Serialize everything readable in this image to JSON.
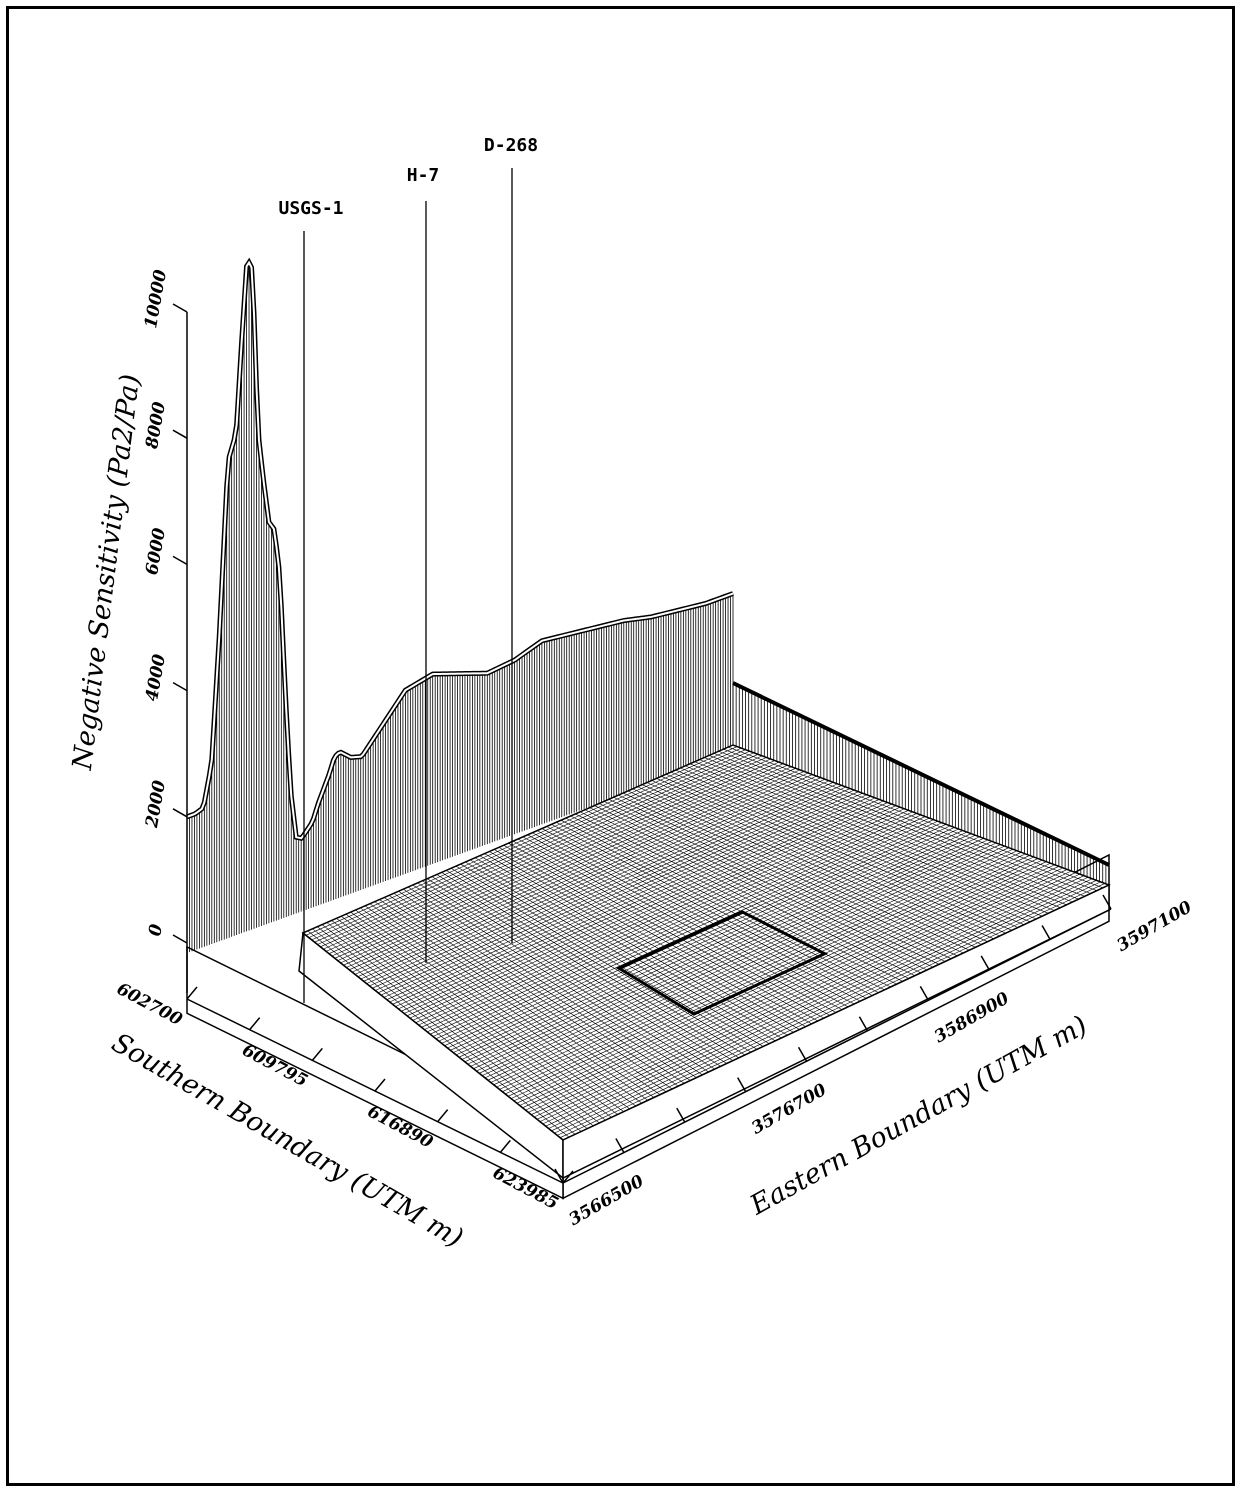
{
  "chart_data": {
    "type": "surface3d",
    "zlabel": "Negative Sensitivity (Pa2/Pa)",
    "xlabel": "Southern Boundary (UTM m)",
    "ylabel": "Eastern Boundary (UTM m)",
    "zticks": [
      "0",
      "2000",
      "4000",
      "6000",
      "8000",
      "10000"
    ],
    "zlim": [
      0,
      10000
    ],
    "xticks": [
      "602700",
      "609795",
      "616890",
      "623985"
    ],
    "xlim": [
      602700,
      623985
    ],
    "yticks": [
      "3566500",
      "3576700",
      "3586900",
      "3597100"
    ],
    "ylim": [
      3566500,
      3597100
    ],
    "wells": [
      {
        "name": "USGS-1"
      },
      {
        "name": "H-7"
      },
      {
        "name": "D-268"
      }
    ],
    "southern_boundary_profile": {
      "x_rel": [
        0,
        0.015,
        0.03,
        0.045,
        0.06,
        0.075,
        0.09,
        0.1,
        0.11,
        0.12,
        0.13,
        0.14,
        0.15,
        0.16,
        0.17,
        0.18,
        0.19,
        0.2,
        0.21,
        0.22,
        0.23,
        0.24,
        0.25,
        0.26,
        0.27,
        0.28,
        0.3,
        0.32,
        0.34,
        0.37,
        0.4,
        0.45,
        0.5,
        0.55,
        0.6,
        0.65,
        0.7,
        0.75,
        0.8,
        0.85,
        0.9,
        0.95,
        1.0
      ],
      "z": [
        2000,
        2000,
        2050,
        2700,
        4800,
        7400,
        7800,
        9200,
        10500,
        10300,
        7700,
        6900,
        6200,
        6050,
        5300,
        3400,
        1800,
        1050,
        1000,
        1100,
        1200,
        1450,
        1650,
        1850,
        2100,
        2150,
        2000,
        1950,
        2150,
        2450,
        2750,
        2850,
        2700,
        2550,
        2600,
        2750,
        2700,
        2650,
        2600,
        2500,
        2450,
        2400,
        2400
      ]
    },
    "eastern_boundary_profile": {
      "y_rel": [
        0,
        0.05,
        0.1,
        0.15,
        0.2,
        0.25,
        0.3,
        0.35,
        0.4,
        0.45,
        0.5,
        0.55,
        0.6,
        0.65,
        0.7,
        0.75,
        0.8,
        0.85,
        0.9,
        0.95,
        1.0
      ],
      "z": [
        2000,
        1500,
        800,
        200,
        0,
        0,
        0,
        0,
        0,
        0,
        0,
        0,
        0,
        0,
        0,
        0,
        0,
        0,
        0,
        0,
        0
      ]
    },
    "base_level": 0,
    "floor_offset": -1050,
    "inner_box": {
      "x_rel": [
        0.55,
        0.8
      ],
      "y_rel": [
        0.35,
        0.6
      ]
    }
  }
}
